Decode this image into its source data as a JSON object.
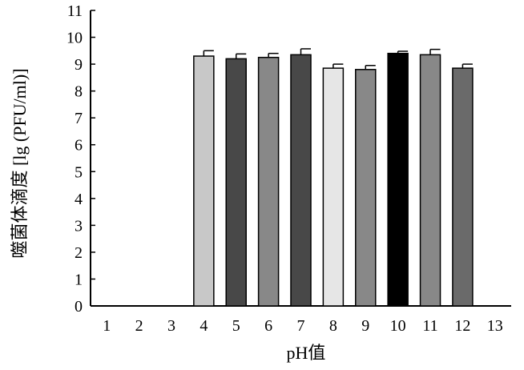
{
  "chart_data": {
    "type": "bar",
    "title": "",
    "xlabel": "pH值",
    "ylabel": "噬菌体滴度 [lg (PFU/ml)]",
    "categories": [
      "1",
      "2",
      "3",
      "4",
      "5",
      "6",
      "7",
      "8",
      "9",
      "10",
      "11",
      "12",
      "13"
    ],
    "values": [
      null,
      null,
      null,
      9.3,
      9.2,
      9.25,
      9.35,
      8.85,
      8.8,
      9.4,
      9.35,
      8.85,
      null
    ],
    "errors": [
      null,
      null,
      null,
      0.2,
      0.18,
      0.15,
      0.22,
      0.15,
      0.15,
      0.08,
      0.2,
      0.15,
      null
    ],
    "bar_colors": [
      "",
      "",
      "",
      "#c8c8c8",
      "#484848",
      "#888888",
      "#484848",
      "#e6e6e6",
      "#888888",
      "#000000",
      "#888888",
      "#6a6a6a",
      ""
    ],
    "ylim": [
      0,
      11
    ],
    "yticks": [
      0,
      1,
      2,
      3,
      4,
      5,
      6,
      7,
      8,
      9,
      10,
      11
    ],
    "grid": false,
    "legend": "none"
  }
}
